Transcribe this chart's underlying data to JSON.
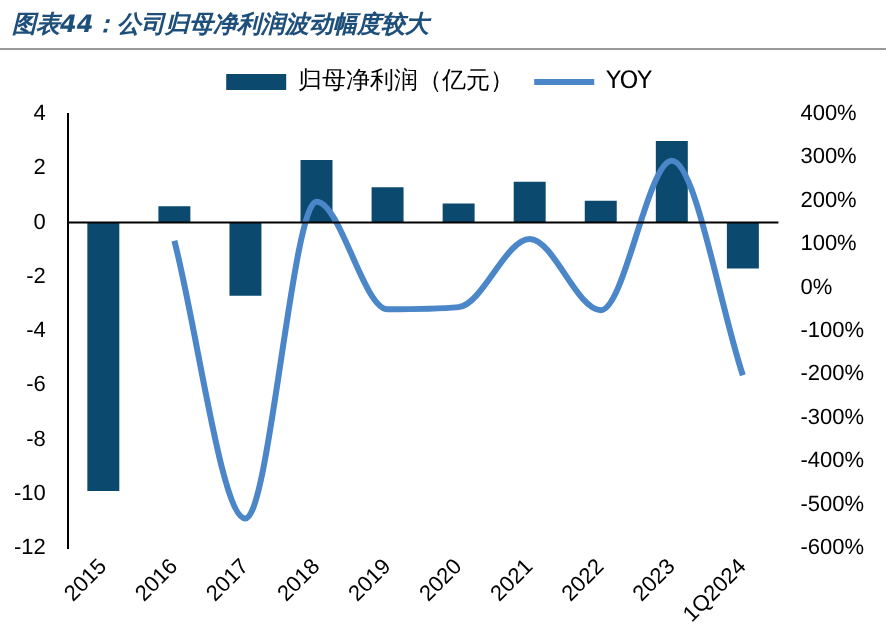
{
  "chart_data": {
    "type": "bar",
    "title": "图表44：公司归母净利润波动幅度较大",
    "categories": [
      "2015",
      "2016",
      "2017",
      "2018",
      "2019",
      "2020",
      "2021",
      "2022",
      "2023",
      "1Q2024"
    ],
    "series": [
      {
        "name": "归母净利润（亿元）",
        "color": "#0b4a6e",
        "values": [
          -9.9,
          0.6,
          -2.7,
          2.3,
          1.3,
          0.7,
          1.5,
          0.8,
          3.0,
          -1.7
        ]
      },
      {
        "name": "YOY",
        "type": "line",
        "axis": "y2",
        "color": "#4a86c8",
        "values": [
          null,
          108,
          -532,
          198,
          -50,
          -45,
          112,
          -52,
          292,
          -202
        ]
      }
    ],
    "ylim": [
      -12,
      4
    ],
    "yticks": [
      -12,
      -10,
      -8,
      -6,
      -4,
      -2,
      0,
      2,
      4
    ],
    "y2lim": [
      -600,
      400
    ],
    "y2ticks": [
      {
        "value": -600,
        "label": "-600%"
      },
      {
        "value": -500,
        "label": "-500%"
      },
      {
        "value": -400,
        "label": "-400%"
      },
      {
        "value": -300,
        "label": "-300%"
      },
      {
        "value": -200,
        "label": "-200%"
      },
      {
        "value": -100,
        "label": "-100%"
      },
      {
        "value": 0,
        "label": "0%"
      },
      {
        "value": 100,
        "label": "100%"
      },
      {
        "value": 200,
        "label": "200%"
      },
      {
        "value": 300,
        "label": "300%"
      },
      {
        "value": 400,
        "label": "400%"
      }
    ],
    "ref_lines": [
      {
        "axis": "y",
        "value": 0,
        "color": "#000000"
      }
    ],
    "legend": "top",
    "grid": false,
    "marker": "none",
    "line_style": "solid"
  }
}
